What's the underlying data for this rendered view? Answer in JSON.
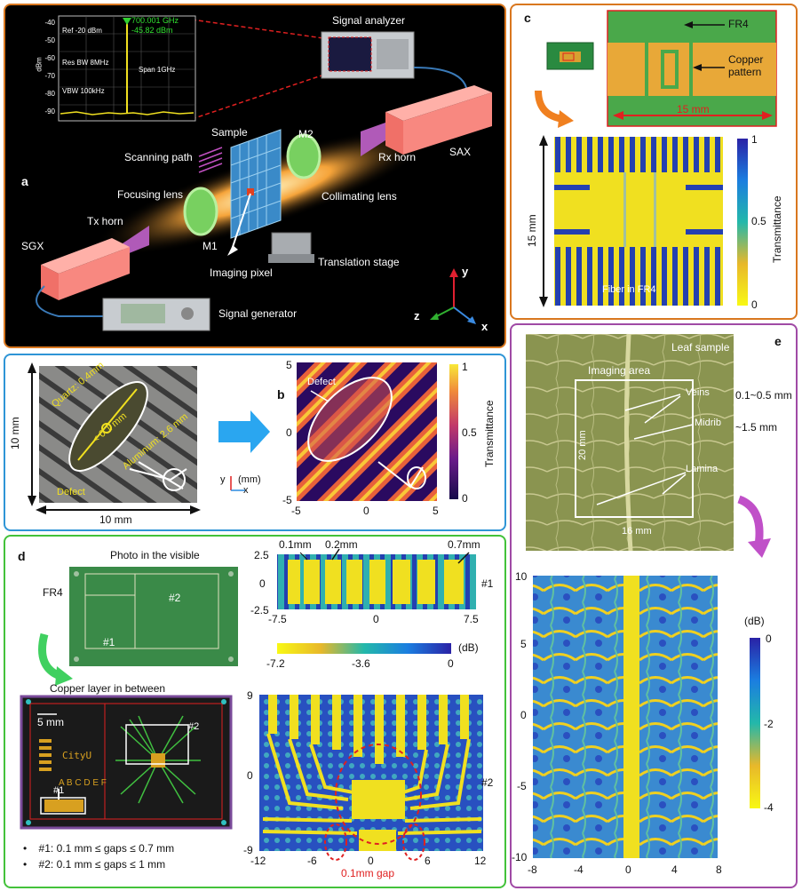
{
  "panel_a": {
    "label": "a",
    "spectrum": {
      "freq": "700.001 GHz",
      "power": "-45.82 dBm",
      "ref": "Ref -20 dBm",
      "res_bw": "Res BW 8MHz",
      "span": "Span 1GHz",
      "vbw": "VBW 100kHz",
      "ylabel": "dBm",
      "yticks": [
        "-40",
        "-50",
        "-60",
        "-70",
        "-80",
        "-90"
      ]
    },
    "labels": {
      "signal_analyzer": "Signal analyzer",
      "sample": "Sample",
      "scanning_path": "Scanning path",
      "m2": "M2",
      "rx_horn": "Rx horn",
      "sax": "SAX",
      "focusing_lens": "Focusing lens",
      "collimating_lens": "Collimating lens",
      "tx_horn": "Tx horn",
      "sgx": "SGX",
      "m1": "M1",
      "translation_stage": "Translation stage",
      "imaging_pixel": "Imaging pixel",
      "signal_generator": "Signal generator",
      "axis_y": "y",
      "axis_z": "z",
      "axis_x": "x"
    }
  },
  "panel_b": {
    "label": "b",
    "photo_labels": {
      "quartz": "Quartz: 0.4mm",
      "gap": "< 0.1 mm",
      "aluminum": "Aluminum: 2.6 mm",
      "defect": "Defect",
      "size_v": "10 mm",
      "size_h": "10 mm"
    },
    "axes_legend": {
      "y": "y",
      "x": "x",
      "unit": "(mm)"
    },
    "map": {
      "defect": "Defect",
      "xticks": [
        "-5",
        "0",
        "5"
      ],
      "yticks": [
        "5",
        "0",
        "-5"
      ],
      "colorbar_ticks": [
        "1",
        "0.5",
        "0"
      ],
      "colorbar_label": "Transmittance"
    }
  },
  "panel_c": {
    "label": "c",
    "fr4": "FR4",
    "copper": "Copper pattern",
    "scale": "15 mm",
    "side": "15 mm",
    "fiber": "Fiber in FR4",
    "colorbar_ticks": [
      "1",
      "0.5",
      "0"
    ],
    "colorbar_label": "Transmittance"
  },
  "panel_d": {
    "label": "d",
    "photo_title": "Photo in the visible",
    "fr4": "FR4",
    "r1": "#1",
    "r2": "#2",
    "copper_title": "Copper layer in between",
    "scale": "5 mm",
    "cityu": "CityU",
    "letters": "A B C D E F",
    "top_map": {
      "yticks": [
        "2.5",
        "0",
        "-2.5"
      ],
      "xticks": [
        "-7.5",
        "0",
        "7.5"
      ],
      "gaps": [
        "0.1mm",
        "0.2mm",
        "0.7mm"
      ],
      "tag": "#1"
    },
    "colorbar": {
      "ticks": [
        "-7.2",
        "-3.6",
        "0"
      ],
      "unit": "(dB)"
    },
    "bottom_map": {
      "yticks": [
        "9",
        "0",
        "-9"
      ],
      "xticks": [
        "-12",
        "-6",
        "0",
        "6",
        "12"
      ],
      "tag": "#2",
      "gap_note": "0.1mm gap"
    },
    "notes": [
      "#1: 0.1 mm ≤ gaps ≤ 0.7 mm",
      "#2: 0.1 mm ≤ gaps ≤ 1 mm"
    ]
  },
  "panel_e": {
    "label": "e",
    "leaf_sample": "Leaf sample",
    "imaging_area": "Imaging area",
    "veins": "Veins",
    "veins_size": "0.1~0.5 mm",
    "midrib": "Midrib",
    "midrib_size": "~1.5 mm",
    "lamina": "Lamina",
    "size_v": "20 mm",
    "size_h": "16 mm",
    "map": {
      "yticks": [
        "10",
        "5",
        "0",
        "-5",
        "-10"
      ],
      "xticks": [
        "-8",
        "-4",
        "0",
        "4",
        "8"
      ],
      "colorbar_unit": "(dB)",
      "colorbar_ticks": [
        "0",
        "-2",
        "-4"
      ]
    }
  },
  "colors": {
    "orange": "#d9771f",
    "blue": "#2f95d6",
    "green": "#43c23a",
    "purple": "#a04aa5"
  }
}
